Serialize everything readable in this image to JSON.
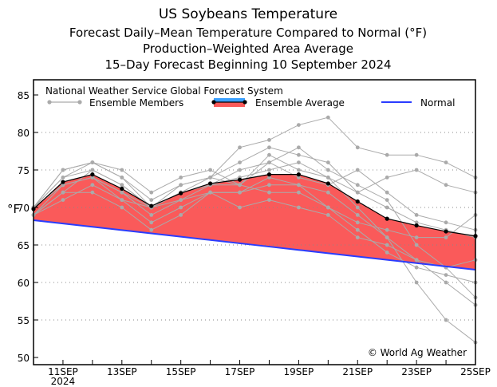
{
  "chart_data": {
    "type": "line",
    "title": "US Soybeans Temperature",
    "subtitles": [
      "Forecast Daily–Mean Temperature Compared to Normal (°F)",
      "Production–Weighted Area Average",
      "15–Day Forecast Beginning 10 September 2024"
    ],
    "ylabel": "°F",
    "ylim": [
      50,
      85
    ],
    "yticks": [
      50,
      55,
      60,
      65,
      70,
      75,
      80,
      85
    ],
    "grid": "dotted horizontal",
    "x": [
      "10SEP",
      "11SEP",
      "12SEP",
      "13SEP",
      "14SEP",
      "15SEP",
      "16SEP",
      "17SEP",
      "18SEP",
      "19SEP",
      "20SEP",
      "21SEP",
      "22SEP",
      "23SEP",
      "24SEP",
      "25SEP"
    ],
    "xtick_labels": [
      {
        "day": 1,
        "label": "11SEP",
        "sub": "2024"
      },
      {
        "day": 3,
        "label": "13SEP",
        "sub": ""
      },
      {
        "day": 5,
        "label": "15SEP",
        "sub": ""
      },
      {
        "day": 7,
        "label": "17SEP",
        "sub": ""
      },
      {
        "day": 9,
        "label": "19SEP",
        "sub": ""
      },
      {
        "day": 11,
        "label": "21SEP",
        "sub": ""
      },
      {
        "day": 13,
        "label": "23SEP",
        "sub": ""
      },
      {
        "day": 15,
        "label": "25SEP",
        "sub": ""
      }
    ],
    "legend_header": "National Weather Service Global Forecast System",
    "legend_placement": "top",
    "series": [
      {
        "name": "Ensemble Average",
        "color": "#000000",
        "fill": "#fa5a5a",
        "values": [
          69.8,
          73.4,
          74.4,
          72.5,
          70.2,
          71.9,
          73.2,
          73.7,
          74.4,
          74.4,
          73.2,
          70.8,
          68.5,
          67.6,
          66.8,
          66.2
        ]
      },
      {
        "name": "Normal",
        "color": "#2a3cff",
        "values": [
          68.3,
          67.86,
          67.42,
          66.98,
          66.54,
          66.1,
          65.66,
          65.22,
          64.78,
          64.34,
          63.9,
          63.46,
          63.02,
          62.58,
          62.14,
          61.7
        ]
      }
    ],
    "ensemble_members": {
      "name": "Ensemble Members",
      "color": "#aaaaaa",
      "values": [
        [
          70,
          74,
          76,
          74,
          71,
          73,
          74,
          78,
          79,
          81,
          82,
          78,
          77,
          77,
          76,
          74
        ],
        [
          69,
          72,
          75,
          73,
          70,
          72,
          73,
          75,
          76,
          78,
          75,
          73,
          71,
          65,
          62,
          58
        ],
        [
          70,
          75,
          76,
          75,
          72,
          74,
          75,
          73,
          77,
          75,
          74,
          70,
          66,
          60,
          55,
          52
        ],
        [
          69,
          73,
          74,
          72,
          70,
          71,
          72,
          72,
          73,
          73,
          72,
          69,
          66,
          63,
          60,
          57
        ],
        [
          70,
          74,
          75,
          73,
          70,
          72,
          74,
          76,
          78,
          77,
          76,
          72,
          70,
          68,
          67,
          66
        ],
        [
          69,
          71,
          73,
          71,
          68,
          70,
          72,
          72,
          74,
          73,
          70,
          67,
          64,
          62,
          61,
          60
        ],
        [
          70,
          73,
          74,
          72,
          69,
          71,
          73,
          74,
          75,
          76,
          74,
          72,
          74,
          75,
          73,
          72
        ],
        [
          69,
          72,
          72,
          70,
          67,
          69,
          72,
          70,
          71,
          70,
          69,
          66,
          65,
          63,
          62,
          63
        ],
        [
          70,
          75,
          76,
          74,
          70,
          73,
          74,
          73,
          76,
          74,
          73,
          75,
          72,
          69,
          68,
          67
        ],
        [
          70,
          73,
          74,
          71,
          70,
          72,
          73,
          73,
          72,
          72,
          70,
          68,
          67,
          66,
          66,
          69
        ]
      ]
    },
    "annotation": "© World Ag Weather"
  }
}
